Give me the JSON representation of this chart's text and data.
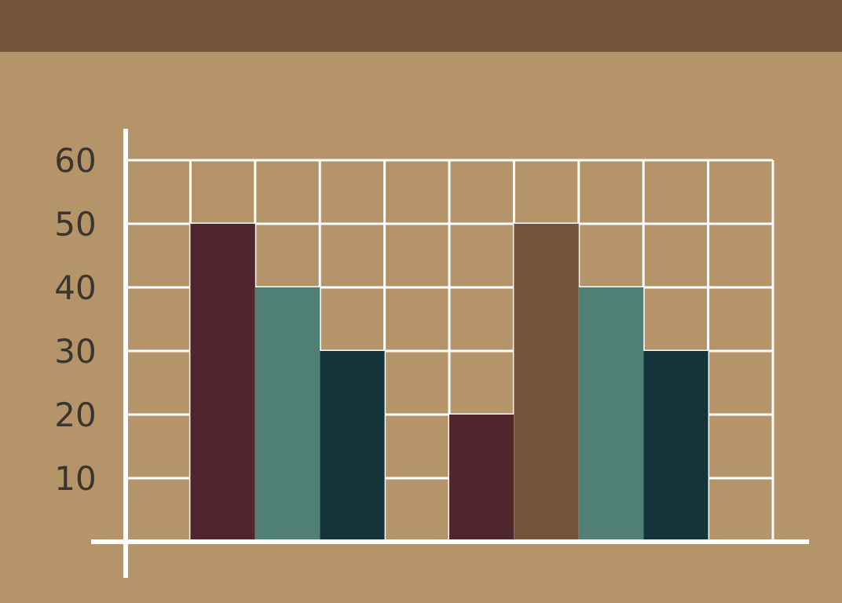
{
  "chart_data": {
    "type": "bar",
    "categories": [
      null,
      null,
      null,
      null,
      null,
      null,
      null,
      null,
      null,
      null
    ],
    "values": [
      null,
      50,
      40,
      30,
      null,
      20,
      50,
      40,
      30,
      null
    ],
    "colors": [
      null,
      "#50252d",
      "#4f7f75",
      "#13353a",
      null,
      "#50252d",
      "#75533a",
      "#4f7f75",
      "#13353a",
      null
    ],
    "ylim": [
      0,
      60
    ],
    "yticks": [
      10,
      20,
      30,
      40,
      50,
      60
    ],
    "grid": true,
    "tick_labels": "y"
  }
}
